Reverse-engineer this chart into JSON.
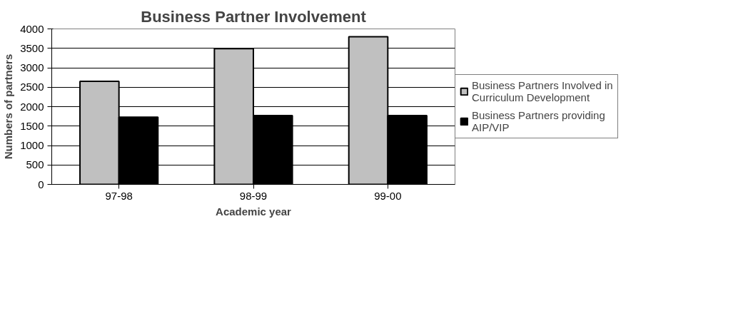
{
  "chart_data": {
    "type": "bar",
    "title": "Business Partner Involvement",
    "xlabel": "Academic year",
    "ylabel": "Numbers of partners",
    "categories": [
      "97-98",
      "98-99",
      "99-00"
    ],
    "series": [
      {
        "name": "Business Partners Involved in Curriculum Development",
        "color": "#c0c0c0",
        "values": [
          2650,
          3490,
          3800
        ]
      },
      {
        "name": "Business Partners providing AIP/VIP",
        "color": "#000000",
        "values": [
          1730,
          1770,
          1770
        ]
      }
    ],
    "ylim": [
      0,
      4000
    ],
    "yticks": [
      0,
      500,
      1000,
      1500,
      2000,
      2500,
      3000,
      3500,
      4000
    ],
    "grid": "y",
    "legend": "right"
  }
}
